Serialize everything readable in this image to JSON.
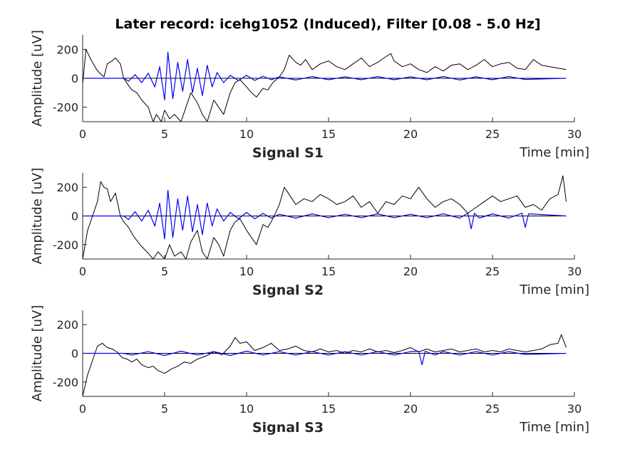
{
  "chart_data": {
    "type": "line",
    "title": "Later record: icehg1052 (Induced), Filter [0.08 - 5.0 Hz]",
    "colors": {
      "raw": "#000000",
      "filtered": "#0000ff",
      "axis": "#262626"
    },
    "panels": [
      {
        "name": "Signal S1",
        "xlabel": "Time [min]",
        "ylabel": "Amplitude [uV]",
        "xlim": [
          0,
          30
        ],
        "ylim": [
          -300,
          300
        ],
        "xticks": [
          0,
          5,
          10,
          15,
          20,
          25,
          30
        ],
        "yticks": [
          -200,
          0,
          200
        ],
        "series": [
          {
            "style": "raw",
            "x": [
              0,
              0.2,
              0.5,
              0.8,
              1.0,
              1.3,
              1.5,
              1.8,
              2.0,
              2.3,
              2.5,
              2.8,
              3.0,
              3.3,
              3.6,
              4.0,
              4.3,
              4.5,
              4.8,
              5.0,
              5.3,
              5.6,
              6.0,
              6.3,
              6.6,
              7.0,
              7.3,
              7.6,
              8.0,
              8.3,
              8.6,
              9.0,
              9.3,
              9.6,
              10.0,
              10.3,
              10.6,
              11.0,
              11.3,
              11.6,
              12.0,
              12.3,
              12.6,
              13.0,
              13.3,
              13.6,
              14.0,
              14.5,
              15.0,
              15.5,
              16.0,
              16.5,
              17.0,
              17.5,
              18.0,
              18.5,
              18.8,
              19.0,
              19.5,
              20.0,
              20.5,
              21.0,
              21.5,
              22.0,
              22.5,
              23.0,
              23.5,
              24.0,
              24.5,
              25.0,
              25.5,
              26.0,
              26.5,
              27.0,
              27.5,
              28.0,
              28.5,
              29.0,
              29.5
            ],
            "y": [
              -40,
              200,
              130,
              70,
              40,
              10,
              100,
              120,
              140,
              100,
              0,
              -50,
              -80,
              -100,
              -150,
              -200,
              -300,
              -250,
              -300,
              -220,
              -280,
              -250,
              -300,
              -200,
              -100,
              -170,
              -250,
              -300,
              -150,
              -200,
              -250,
              -100,
              -30,
              -10,
              -60,
              -100,
              -130,
              -70,
              -80,
              -30,
              10,
              60,
              160,
              110,
              90,
              130,
              60,
              100,
              120,
              80,
              60,
              100,
              140,
              80,
              110,
              150,
              170,
              120,
              80,
              100,
              60,
              40,
              80,
              50,
              90,
              100,
              60,
              90,
              130,
              80,
              100,
              110,
              70,
              60,
              130,
              90,
              80,
              70,
              60
            ]
          },
          {
            "style": "filtered",
            "x": [
              0,
              2.5,
              2.8,
              3.2,
              3.6,
              4.0,
              4.4,
              4.7,
              5.0,
              5.2,
              5.5,
              5.8,
              6.1,
              6.4,
              6.7,
              7.0,
              7.3,
              7.6,
              7.9,
              8.2,
              8.6,
              9.0,
              9.5,
              10.0,
              10.5,
              11.0,
              11.5,
              12.0,
              13.0,
              14.0,
              15.0,
              16.0,
              17.0,
              18.0,
              19.0,
              20.0,
              21.0,
              22.0,
              23.0,
              24.0,
              25.0,
              26.0,
              27.0,
              29.5
            ],
            "y": [
              0,
              0,
              -20,
              25,
              -30,
              35,
              -60,
              80,
              -150,
              180,
              -140,
              110,
              -90,
              130,
              -100,
              70,
              -120,
              90,
              -60,
              40,
              -30,
              20,
              -15,
              20,
              -15,
              15,
              -10,
              10,
              -12,
              12,
              -10,
              10,
              -10,
              12,
              -10,
              10,
              -10,
              12,
              -12,
              10,
              -10,
              12,
              -8,
              0
            ]
          }
        ]
      },
      {
        "name": "Signal S2",
        "xlabel": "Time [min]",
        "ylabel": "Amplitude [uV]",
        "xlim": [
          0,
          30
        ],
        "ylim": [
          -300,
          300
        ],
        "xticks": [
          0,
          5,
          10,
          15,
          20,
          25,
          30
        ],
        "yticks": [
          -200,
          0,
          200
        ],
        "series": [
          {
            "style": "raw",
            "x": [
              0,
              0.3,
              0.6,
              0.9,
              1.1,
              1.3,
              1.5,
              1.7,
              2.0,
              2.3,
              2.5,
              2.8,
              3.1,
              3.5,
              4.0,
              4.3,
              4.6,
              5.0,
              5.3,
              5.6,
              6.0,
              6.3,
              6.6,
              7.0,
              7.3,
              7.6,
              8.0,
              8.3,
              8.6,
              9.0,
              9.3,
              9.6,
              10.0,
              10.3,
              10.6,
              11.0,
              11.3,
              11.6,
              12.0,
              12.3,
              12.6,
              13.0,
              13.5,
              14.0,
              14.5,
              15.0,
              15.5,
              16.0,
              16.5,
              17.0,
              17.5,
              18.0,
              18.5,
              19.0,
              19.5,
              20.0,
              20.5,
              21.0,
              21.5,
              22.0,
              22.5,
              23.0,
              23.5,
              24.0,
              24.5,
              25.0,
              25.5,
              26.0,
              26.5,
              27.0,
              27.5,
              28.0,
              28.5,
              29.0,
              29.3,
              29.5
            ],
            "y": [
              -300,
              -100,
              0,
              100,
              240,
              200,
              190,
              100,
              160,
              0,
              -40,
              -80,
              -140,
              -200,
              -260,
              -300,
              -250,
              -300,
              -200,
              -280,
              -250,
              -300,
              -180,
              -100,
              -250,
              -300,
              -150,
              -200,
              -280,
              -100,
              -40,
              -20,
              -100,
              -150,
              -200,
              -60,
              -80,
              -20,
              80,
              200,
              150,
              80,
              120,
              100,
              150,
              120,
              80,
              100,
              140,
              60,
              100,
              20,
              100,
              80,
              140,
              120,
              200,
              120,
              60,
              100,
              120,
              80,
              20,
              60,
              100,
              140,
              100,
              120,
              140,
              60,
              80,
              40,
              120,
              150,
              280,
              100
            ]
          },
          {
            "style": "filtered",
            "x": [
              0,
              2.5,
              2.8,
              3.2,
              3.6,
              4.0,
              4.4,
              4.7,
              5.0,
              5.2,
              5.5,
              5.8,
              6.1,
              6.4,
              6.7,
              7.0,
              7.3,
              7.6,
              7.9,
              8.2,
              8.6,
              9.0,
              9.5,
              10.0,
              10.5,
              11.0,
              11.5,
              12.0,
              13.0,
              14.0,
              15.0,
              16.0,
              17.0,
              18.0,
              19.0,
              20.0,
              21.0,
              22.0,
              23.0,
              23.5,
              23.7,
              23.9,
              24.2,
              25.0,
              26.0,
              26.8,
              27.0,
              27.2,
              29.5
            ],
            "y": [
              0,
              0,
              -25,
              30,
              -35,
              40,
              -70,
              90,
              -160,
              180,
              -150,
              120,
              -100,
              140,
              -110,
              80,
              -130,
              90,
              -70,
              50,
              -35,
              25,
              -20,
              25,
              -20,
              18,
              -15,
              12,
              -15,
              15,
              -12,
              12,
              -12,
              15,
              -12,
              12,
              -12,
              15,
              -15,
              20,
              -90,
              20,
              -15,
              15,
              -15,
              20,
              -80,
              15,
              0
            ]
          }
        ]
      },
      {
        "name": "Signal S3",
        "xlabel": "Time [min]",
        "ylabel": "Amplitude [uV]",
        "xlim": [
          0,
          30
        ],
        "ylim": [
          -300,
          300
        ],
        "xticks": [
          0,
          5,
          10,
          15,
          20,
          25,
          30
        ],
        "yticks": [
          -200,
          0,
          200
        ],
        "series": [
          {
            "style": "raw",
            "x": [
              0,
              0.1,
              0.3,
              0.6,
              0.9,
              1.2,
              1.5,
              1.8,
              2.1,
              2.4,
              2.7,
              3.0,
              3.3,
              3.6,
              4.0,
              4.3,
              4.6,
              5.0,
              5.4,
              5.8,
              6.2,
              6.6,
              7.0,
              7.5,
              8.0,
              8.5,
              9.0,
              9.3,
              9.6,
              10.0,
              10.5,
              11.0,
              11.5,
              12.0,
              12.5,
              13.0,
              13.5,
              14.0,
              14.5,
              15.0,
              15.5,
              16.0,
              16.5,
              17.0,
              17.5,
              18.0,
              18.5,
              19.0,
              19.5,
              20.0,
              20.5,
              21.0,
              21.5,
              22.0,
              22.5,
              23.0,
              23.5,
              24.0,
              24.5,
              25.0,
              25.5,
              26.0,
              26.5,
              27.0,
              27.5,
              28.0,
              28.5,
              29.0,
              29.2,
              29.5
            ],
            "y": [
              -300,
              -250,
              -150,
              -50,
              50,
              70,
              40,
              30,
              10,
              -30,
              -40,
              -60,
              -40,
              -80,
              -100,
              -90,
              -120,
              -140,
              -110,
              -90,
              -60,
              -70,
              -40,
              -20,
              10,
              -10,
              50,
              110,
              70,
              80,
              20,
              40,
              70,
              20,
              30,
              50,
              20,
              10,
              30,
              10,
              20,
              0,
              20,
              10,
              30,
              10,
              20,
              5,
              20,
              40,
              10,
              30,
              10,
              20,
              30,
              10,
              20,
              30,
              10,
              20,
              10,
              30,
              20,
              10,
              20,
              30,
              60,
              70,
              130,
              40
            ]
          },
          {
            "style": "filtered",
            "x": [
              0,
              2.5,
              3.0,
              4.0,
              5.0,
              6.0,
              7.0,
              8.0,
              9.0,
              10.0,
              11.0,
              12.0,
              13.0,
              14.0,
              15.0,
              16.0,
              17.0,
              18.0,
              19.0,
              20.0,
              20.5,
              20.7,
              20.9,
              21.5,
              22.0,
              23.0,
              24.0,
              25.0,
              26.0,
              27.0,
              29.5
            ],
            "y": [
              0,
              0,
              -12,
              12,
              -15,
              15,
              -12,
              12,
              -15,
              15,
              -12,
              12,
              -12,
              12,
              -12,
              12,
              -12,
              12,
              -12,
              12,
              15,
              -80,
              15,
              -12,
              12,
              -12,
              12,
              -12,
              12,
              -8,
              0
            ]
          }
        ]
      }
    ]
  }
}
